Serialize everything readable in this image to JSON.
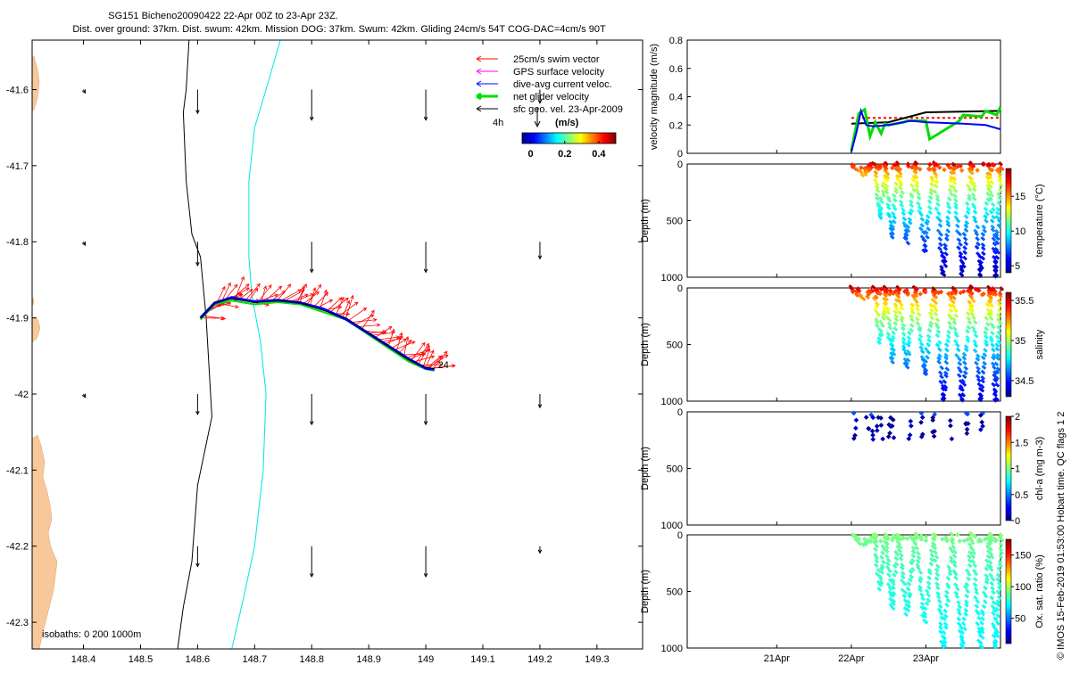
{
  "title_line1": "SG151 Bicheno20090422 22-Apr 00Z to 23-Apr 23Z.",
  "title_line2": "Dist. over ground: 37km. Dist. swum: 42km. Mission DOG: 37km. Swum: 42km. Gliding 24cm/s 54T COG-DAC=4cm/s 90T",
  "isobaths_label": "isobaths: 0   200  1000m",
  "footer": "© IMOS 15-Feb-2019 01:53:00 Hobart time. QC flags 1  2",
  "colors": {
    "swim": "#ff0000",
    "gps": "#ff00ff",
    "dac": "#0000ff",
    "net": "#00dd00",
    "sfc": "#000000",
    "land": "#f9c89a",
    "isobath200": "#00e5e5"
  },
  "chart_data": [
    {
      "type": "scatter",
      "id": "map",
      "x_ticks": [
        148.4,
        148.5,
        148.6,
        148.7,
        148.8,
        148.9,
        149,
        149.1,
        149.2,
        149.3
      ],
      "x_tick_labels": [
        "148.4",
        "148.5",
        "148.6",
        "148.7",
        "148.8",
        "148.9",
        "149",
        "149.1",
        "149.2",
        "149.3"
      ],
      "y_ticks": [
        -41.6,
        -41.7,
        -41.8,
        -41.9,
        -42,
        -42.1,
        -42.2,
        -42.3
      ],
      "y_tick_labels": [
        "-41.6",
        "-41.7",
        "-41.8",
        "-41.9",
        "-42",
        "-42.1",
        "-42.2",
        "-42.3"
      ],
      "xlim": [
        148.31,
        149.38
      ],
      "ylim": [
        -42.335,
        -41.535
      ],
      "legend": [
        {
          "label": "25cm/s swim vector",
          "color": "#ff0000"
        },
        {
          "label": "GPS surface velocity",
          "color": "#ff00ff"
        },
        {
          "label": "dive-avg current veloc.",
          "color": "#0000ff"
        },
        {
          "label": "net glider velocity",
          "color": "#00dd00"
        },
        {
          "label": "sfc geo. vel. 23-Apr-2009",
          "color": "#000000"
        }
      ],
      "legend_position": "top-right",
      "time_label": "4h",
      "colorbar": {
        "title": "(m/s)",
        "ticks": [
          "0",
          "0.2",
          "0.4"
        ],
        "range": [
          -0.05,
          0.5
        ]
      },
      "end_label": "24",
      "track": [
        [
          148.605,
          -41.9
        ],
        [
          148.63,
          -41.88
        ],
        [
          148.66,
          -41.875
        ],
        [
          148.7,
          -41.88
        ],
        [
          148.74,
          -41.877
        ],
        [
          148.78,
          -41.88
        ],
        [
          148.82,
          -41.89
        ],
        [
          148.86,
          -41.9
        ],
        [
          148.9,
          -41.92
        ],
        [
          148.94,
          -41.94
        ],
        [
          148.97,
          -41.955
        ],
        [
          149,
          -41.965
        ],
        [
          149.015,
          -41.967
        ]
      ],
      "isobath_1000": [
        [
          148.585,
          -41.535
        ],
        [
          148.58,
          -41.6
        ],
        [
          148.575,
          -41.63
        ],
        [
          148.58,
          -41.72
        ],
        [
          148.59,
          -41.79
        ],
        [
          148.605,
          -41.82
        ],
        [
          148.615,
          -41.9
        ],
        [
          148.625,
          -42.03
        ],
        [
          148.6,
          -42.12
        ],
        [
          148.59,
          -42.22
        ],
        [
          148.575,
          -42.28
        ],
        [
          148.565,
          -42.335
        ]
      ],
      "isobath_200": [
        [
          148.745,
          -41.535
        ],
        [
          148.72,
          -41.6
        ],
        [
          148.7,
          -41.65
        ],
        [
          148.69,
          -41.72
        ],
        [
          148.69,
          -41.82
        ],
        [
          148.695,
          -41.87
        ],
        [
          148.71,
          -41.93
        ],
        [
          148.72,
          -42.0
        ],
        [
          148.715,
          -42.1
        ],
        [
          148.7,
          -42.2
        ],
        [
          148.68,
          -42.27
        ],
        [
          148.66,
          -42.335
        ]
      ],
      "geo_vectors": [
        {
          "lon": 148.4,
          "lat": -41.6,
          "u": 0.005,
          "v": -0.01
        },
        {
          "lon": 148.6,
          "lat": -41.6,
          "u": 0.0,
          "v": -0.07
        },
        {
          "lon": 148.8,
          "lat": -41.6,
          "u": 0.0,
          "v": -0.09
        },
        {
          "lon": 149.0,
          "lat": -41.6,
          "u": 0.0,
          "v": -0.09
        },
        {
          "lon": 149.2,
          "lat": -41.6,
          "u": 0.0,
          "v": -0.04
        },
        {
          "lon": 148.4,
          "lat": -41.8,
          "u": 0.005,
          "v": -0.01
        },
        {
          "lon": 148.6,
          "lat": -41.8,
          "u": 0.0,
          "v": -0.07
        },
        {
          "lon": 148.8,
          "lat": -41.8,
          "u": 0.0,
          "v": -0.09
        },
        {
          "lon": 149.0,
          "lat": -41.8,
          "u": 0.0,
          "v": -0.09
        },
        {
          "lon": 149.2,
          "lat": -41.8,
          "u": 0.0,
          "v": -0.05
        },
        {
          "lon": 148.4,
          "lat": -42.0,
          "u": 0.005,
          "v": -0.01
        },
        {
          "lon": 148.6,
          "lat": -42.0,
          "u": 0.0,
          "v": -0.06
        },
        {
          "lon": 148.8,
          "lat": -42.0,
          "u": 0.0,
          "v": -0.09
        },
        {
          "lon": 149.0,
          "lat": -42.0,
          "u": 0.0,
          "v": -0.09
        },
        {
          "lon": 149.2,
          "lat": -42.0,
          "u": 0.0,
          "v": -0.04
        },
        {
          "lon": 148.6,
          "lat": -42.2,
          "u": 0.0,
          "v": -0.06
        },
        {
          "lon": 148.8,
          "lat": -42.2,
          "u": 0.0,
          "v": -0.09
        },
        {
          "lon": 149.0,
          "lat": -42.2,
          "u": 0.0,
          "v": -0.09
        },
        {
          "lon": 149.2,
          "lat": -42.2,
          "u": 0.0,
          "v": -0.02
        }
      ]
    },
    {
      "type": "line",
      "id": "velocity",
      "ylabel": "velocity magnitude (m/s)",
      "y_ticks": [
        "0",
        "0.2",
        "0.4",
        "0.6",
        "0.8"
      ],
      "ylim": [
        0,
        0.8
      ],
      "xlim": [
        19.8,
        24.0
      ],
      "series": [
        {
          "color": "#ff0000",
          "dashed": true,
          "x": [
            22.0,
            24.0
          ],
          "y": [
            0.25,
            0.25
          ]
        },
        {
          "color": "#000000",
          "x": [
            22.0,
            22.5,
            23.0,
            24.0
          ],
          "y": [
            0.21,
            0.22,
            0.29,
            0.3
          ]
        },
        {
          "color": "#00dd00",
          "x": [
            22.0,
            22.1,
            22.18,
            22.25,
            22.32,
            22.4,
            22.45,
            22.5,
            22.6,
            22.7,
            22.75,
            23.0,
            23.05,
            23.45,
            23.5,
            23.75,
            23.8,
            23.95,
            24.0
          ],
          "y": [
            0.02,
            0.28,
            0.31,
            0.12,
            0.22,
            0.14,
            0.21,
            0.2,
            0.21,
            0.22,
            0.23,
            0.23,
            0.1,
            0.23,
            0.27,
            0.26,
            0.3,
            0.27,
            0.33
          ],
          "width": 3
        },
        {
          "color": "#0000ff",
          "x": [
            22.0,
            22.07,
            22.13,
            22.2,
            22.3,
            22.5,
            22.8,
            23.0,
            23.5,
            23.8,
            24.0
          ],
          "y": [
            0.01,
            0.15,
            0.3,
            0.2,
            0.19,
            0.2,
            0.23,
            0.22,
            0.21,
            0.2,
            0.17
          ]
        }
      ]
    },
    {
      "type": "scatter",
      "id": "temperature",
      "ylabel": "Depth (m)",
      "y_ticks": [
        "0",
        "500",
        "1000"
      ],
      "colorbar_label": "temperature (°C)",
      "colorbar_ticks": [
        "5",
        "10",
        "15"
      ],
      "crange": [
        4,
        19
      ],
      "cmin": 4.5,
      "cmax": 18
    },
    {
      "type": "scatter",
      "id": "salinity",
      "ylabel": "Depth (m)",
      "y_ticks": [
        "0",
        "500",
        "1000"
      ],
      "colorbar_label": "salinity",
      "colorbar_ticks": [
        "34.5",
        "35",
        "35.5"
      ],
      "crange": [
        34.3,
        35.6
      ],
      "cmin": 34.4,
      "cmax": 35.55
    },
    {
      "type": "scatter",
      "id": "chla",
      "ylabel": "Depth (m)",
      "y_ticks": [
        "0",
        "500",
        "1000"
      ],
      "colorbar_label": "chl-a (mg m-3)",
      "colorbar_ticks": [
        "0",
        "0.5",
        "1",
        "1.5",
        "2"
      ],
      "crange": [
        0,
        2
      ]
    },
    {
      "type": "scatter",
      "id": "oxygen",
      "ylabel": "Depth (m)",
      "y_ticks": [
        "0",
        "500",
        "1000"
      ],
      "colorbar_label": "Ox. sat. ratio (%)",
      "colorbar_ticks": [
        "50",
        "100",
        "150"
      ],
      "crange": [
        10,
        175
      ],
      "cmin": 70,
      "cmax": 95,
      "x_ticks": [
        21,
        22,
        23
      ],
      "x_tick_labels": [
        "21Apr",
        "22Apr",
        "23Apr"
      ],
      "xlim": [
        19.8,
        24.0
      ]
    }
  ]
}
